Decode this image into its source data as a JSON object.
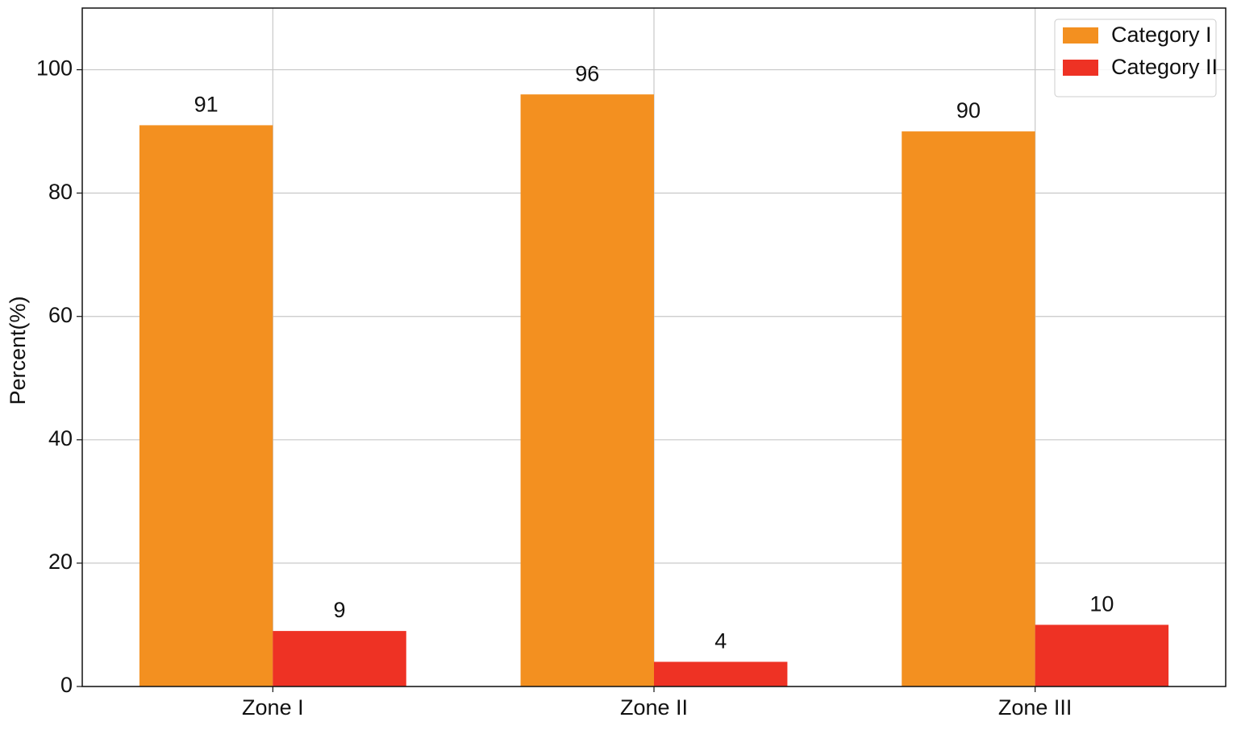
{
  "chart_data": {
    "type": "bar",
    "y_label": "Percent(%)",
    "categories": [
      "Zone I",
      "Zone II",
      "Zone III"
    ],
    "series": [
      {
        "name": "Category I",
        "color": "#f39020",
        "values": [
          91,
          96,
          90
        ]
      },
      {
        "name": "Category II",
        "color": "#ee3224",
        "values": [
          9,
          4,
          10
        ]
      }
    ],
    "ylim": [
      0,
      110
    ],
    "yticks": [
      0,
      20,
      40,
      60,
      80,
      100
    ],
    "grid": true,
    "legend": "upper right",
    "data_labels": true
  }
}
